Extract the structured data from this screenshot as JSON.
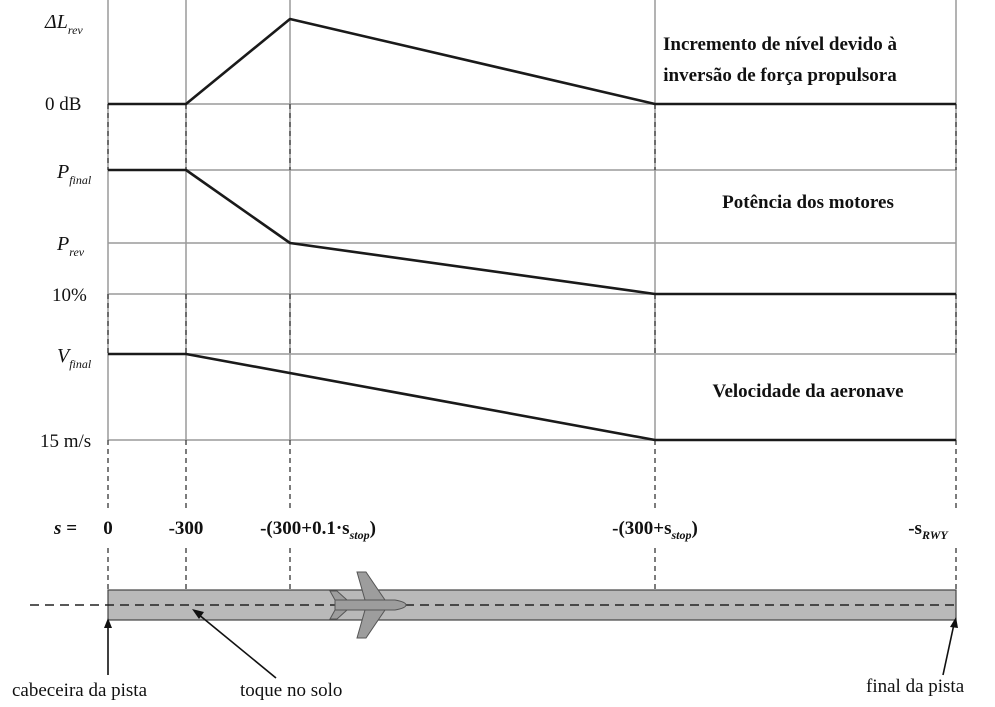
{
  "panels": [
    {
      "id": "level",
      "title_line1": "Incremento de nível devido à",
      "title_line2": "inversão de força propulsora",
      "y_top_label": {
        "main": "ΔL",
        "sub": "rev"
      },
      "y_bottom_label": "0 dB"
    },
    {
      "id": "power",
      "title_line1": "Potência dos motores",
      "y_top_label": {
        "main": "P",
        "sub": "final"
      },
      "y_mid_label": {
        "main": "P",
        "sub": "rev"
      },
      "y_bottom_label": "10%"
    },
    {
      "id": "speed",
      "title_line1": "Velocidade da aeronave",
      "y_top_label": {
        "main": "V",
        "sub": "final"
      },
      "y_bottom_label": "15 m/s"
    }
  ],
  "s_axis": {
    "prefix": "s =",
    "ticks": [
      {
        "main": "0",
        "sub": "",
        "tail": ""
      },
      {
        "main": "-300",
        "sub": "",
        "tail": ""
      },
      {
        "main": "-(300+0.1·s",
        "sub": "stop",
        "tail": ")"
      },
      {
        "main": "-(300+s",
        "sub": "stop",
        "tail": ")"
      },
      {
        "main": "-s",
        "sub": "RWY",
        "tail": ""
      }
    ]
  },
  "runway": {
    "label_start": "cabeceira da pista",
    "label_touchdown": "toque no solo",
    "label_end": "final da pista",
    "colors": {
      "runway": "#b9b9b9",
      "aircraft": "#9d9d9d"
    }
  }
}
